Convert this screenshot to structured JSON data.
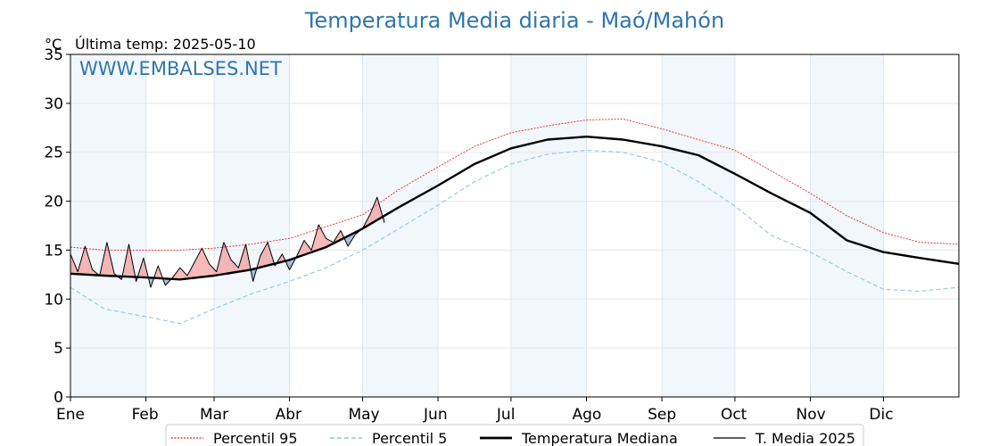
{
  "chart_data": {
    "type": "line",
    "title": "Temperatura Media diaria - Maó/Mahón",
    "unit_label": "°C",
    "last_temp_label": "Última temp: 2025-05-10",
    "watermark": "WWW.EMBALSES.NET",
    "ylim": [
      0,
      35
    ],
    "yticks": [
      "0",
      "5",
      "10",
      "15",
      "20",
      "25",
      "30",
      "35"
    ],
    "xlim": [
      1,
      366
    ],
    "months": [
      {
        "label": "Ene",
        "day": 1
      },
      {
        "label": "Feb",
        "day": 32
      },
      {
        "label": "Mar",
        "day": 60
      },
      {
        "label": "Abr",
        "day": 91
      },
      {
        "label": "May",
        "day": 121
      },
      {
        "label": "Jun",
        "day": 152
      },
      {
        "label": "Jul",
        "day": 182
      },
      {
        "label": "Ago",
        "day": 213
      },
      {
        "label": "Sep",
        "day": 244
      },
      {
        "label": "Oct",
        "day": 274
      },
      {
        "label": "Nov",
        "day": 305
      },
      {
        "label": "Dic",
        "day": 335
      }
    ],
    "shaded_months": [
      "Ene",
      "Mar",
      "May",
      "Jul",
      "Sep",
      "Nov"
    ],
    "grid": true,
    "legend_position": "bottom-center",
    "series": [
      {
        "name": "Percentil 95",
        "style": "dotted",
        "color": "#e8241f",
        "x": [
          1,
          15,
          32,
          46,
          60,
          75,
          91,
          106,
          121,
          136,
          152,
          167,
          182,
          197,
          213,
          228,
          244,
          259,
          274,
          289,
          305,
          320,
          335,
          350,
          366
        ],
        "y": [
          15.3,
          15.0,
          15.0,
          15.0,
          15.2,
          15.6,
          16.2,
          17.4,
          18.6,
          21.2,
          23.5,
          25.6,
          27.0,
          27.7,
          28.3,
          28.4,
          27.4,
          26.3,
          25.2,
          23.1,
          20.8,
          18.5,
          16.8,
          15.8,
          15.6
        ]
      },
      {
        "name": "Percentil 5",
        "style": "dashed",
        "color": "#8ccbe0",
        "x": [
          1,
          15,
          32,
          46,
          60,
          75,
          91,
          106,
          121,
          136,
          152,
          167,
          182,
          197,
          213,
          228,
          244,
          259,
          274,
          289,
          305,
          320,
          335,
          350,
          366
        ],
        "y": [
          11.2,
          9.0,
          8.2,
          7.5,
          9.0,
          10.5,
          11.8,
          13.2,
          15.0,
          17.2,
          19.6,
          22.0,
          23.8,
          24.8,
          25.2,
          25.0,
          24.0,
          22.0,
          19.5,
          16.5,
          14.8,
          12.8,
          11.0,
          10.8,
          11.2
        ]
      },
      {
        "name": "Temperatura Mediana",
        "style": "solid-thick",
        "color": "#000000",
        "x": [
          1,
          15,
          32,
          46,
          60,
          75,
          91,
          106,
          121,
          136,
          152,
          167,
          182,
          197,
          213,
          228,
          244,
          259,
          274,
          289,
          305,
          320,
          335,
          350,
          366
        ],
        "y": [
          12.6,
          12.4,
          12.2,
          12.0,
          12.4,
          13.0,
          14.0,
          15.3,
          17.2,
          19.4,
          21.6,
          23.8,
          25.4,
          26.3,
          26.6,
          26.3,
          25.6,
          24.7,
          22.8,
          20.8,
          18.8,
          16.0,
          14.8,
          14.2,
          13.6
        ]
      },
      {
        "name": "T. Media 2025",
        "style": "solid-thin",
        "color": "#000000",
        "x": [
          1,
          4,
          7,
          10,
          13,
          16,
          19,
          22,
          25,
          28,
          31,
          34,
          37,
          40,
          43,
          46,
          49,
          52,
          55,
          58,
          61,
          64,
          67,
          70,
          73,
          76,
          79,
          82,
          85,
          88,
          91,
          94,
          97,
          100,
          103,
          106,
          109,
          112,
          115,
          118,
          121,
          124,
          127,
          130
        ],
        "y": [
          14.6,
          12.8,
          15.4,
          13.0,
          12.4,
          15.8,
          12.6,
          12.0,
          15.6,
          11.8,
          14.2,
          11.2,
          13.4,
          11.4,
          12.2,
          13.2,
          12.4,
          13.8,
          15.2,
          13.6,
          12.8,
          15.8,
          14.0,
          13.2,
          15.6,
          11.8,
          14.4,
          15.8,
          13.4,
          14.6,
          13.0,
          14.4,
          16.0,
          15.0,
          17.6,
          16.2,
          15.8,
          17.0,
          15.4,
          16.6,
          17.2,
          18.6,
          20.4,
          17.8
        ]
      }
    ]
  }
}
